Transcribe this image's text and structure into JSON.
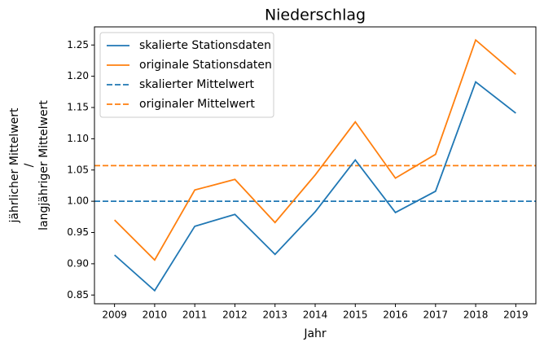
{
  "chart_data": {
    "type": "line",
    "title": "Niederschlag",
    "xlabel": "Jahr",
    "ylabel": [
      "jährlicher Mittelwert",
      "/",
      "langjähriger Mittelwert"
    ],
    "x": [
      2009,
      2010,
      2011,
      2012,
      2013,
      2014,
      2015,
      2016,
      2017,
      2018,
      2019
    ],
    "series": [
      {
        "name": "skalierte Stationsdaten",
        "color": "#1f77b4",
        "values": [
          0.914,
          0.857,
          0.96,
          0.979,
          0.915,
          0.983,
          1.066,
          0.982,
          1.016,
          1.191,
          1.141
        ]
      },
      {
        "name": "originale Stationsdaten",
        "color": "#ff7f0e",
        "values": [
          0.97,
          0.906,
          1.018,
          1.035,
          0.966,
          1.042,
          1.127,
          1.037,
          1.075,
          1.258,
          1.203
        ]
      }
    ],
    "hlines": [
      {
        "name": "skalierter Mittelwert",
        "color": "#1f77b4",
        "value": 1.0,
        "style": "dashed"
      },
      {
        "name": "originaler Mittelwert",
        "color": "#ff7f0e",
        "value": 1.057,
        "style": "dashed"
      }
    ],
    "xlim": [
      2008.5,
      2019.5
    ],
    "xticks": [
      2009,
      2010,
      2011,
      2012,
      2013,
      2014,
      2015,
      2016,
      2017,
      2018,
      2019
    ],
    "ylim": [
      0.836,
      1.279
    ],
    "yticks": [
      0.85,
      {
        "value": 0.9,
        "label": "0.90"
      },
      0.95,
      {
        "value": 1.0,
        "label": "1.00"
      },
      1.05,
      {
        "value": 1.1,
        "label": "1.10"
      },
      1.15,
      {
        "value": 1.2,
        "label": "1.20"
      },
      1.25
    ],
    "grid": false,
    "legend": "upper left"
  }
}
